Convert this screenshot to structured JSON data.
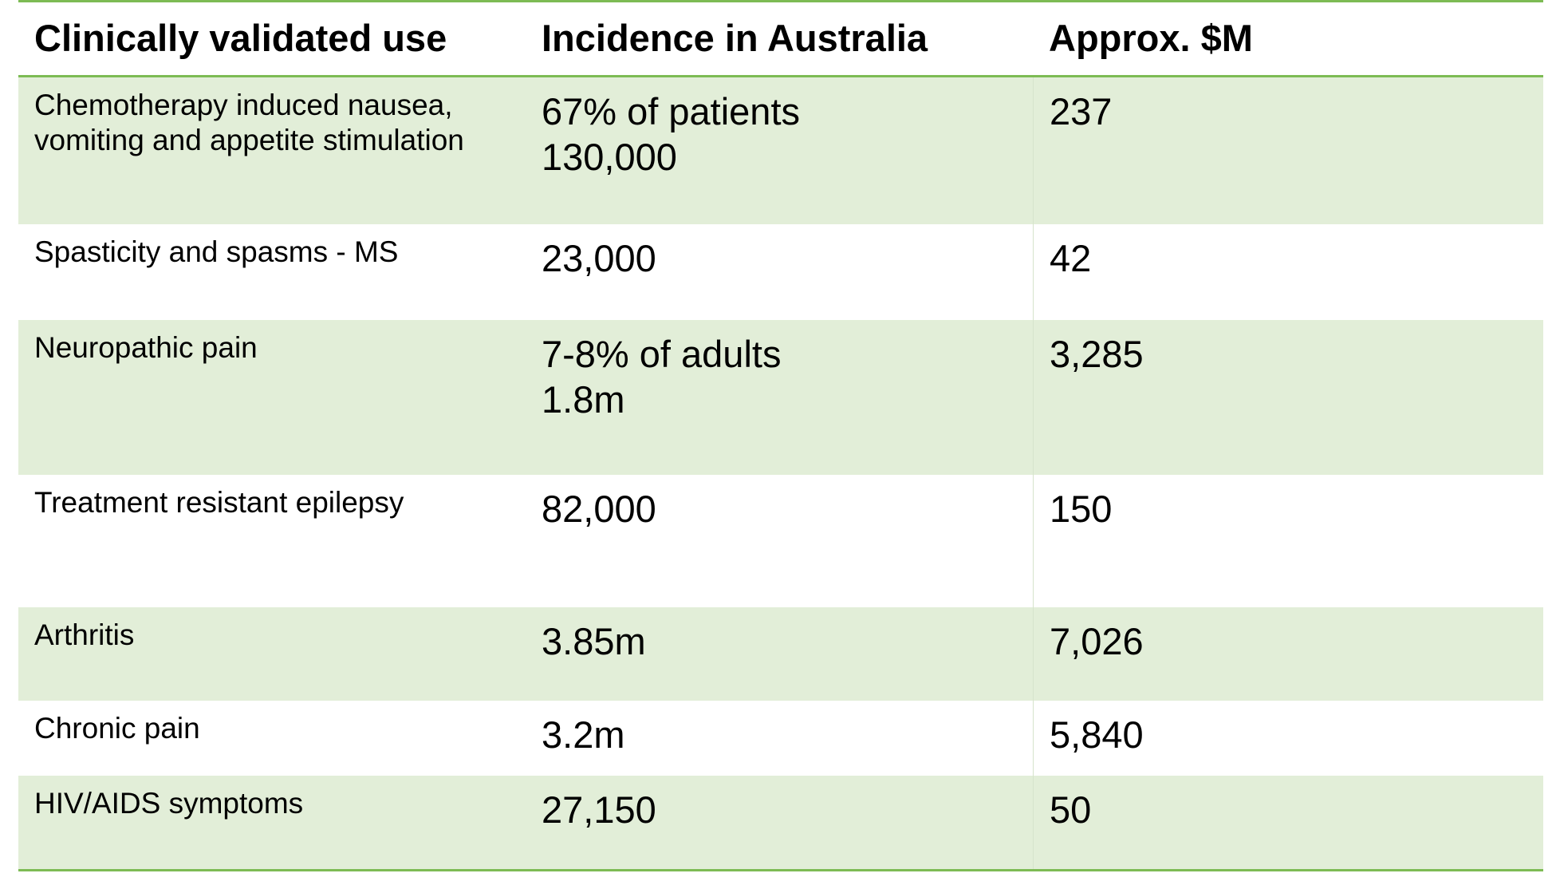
{
  "table": {
    "headers": [
      "Clinically validated use",
      "Incidence in Australia",
      "Approx. $M"
    ],
    "rows": [
      {
        "use": [
          "Chemotherapy induced nausea,",
          "vomiting and appetite stimulation"
        ],
        "incidence": [
          "67% of patients",
          "130,000"
        ],
        "amount": "237"
      },
      {
        "use": [
          "Spasticity and spasms - MS"
        ],
        "incidence": [
          "23,000"
        ],
        "amount": "42"
      },
      {
        "use": [
          "Neuropathic pain"
        ],
        "incidence": [
          "7-8% of adults",
          "1.8m"
        ],
        "amount": "3,285"
      },
      {
        "use": [
          "Treatment resistant epilepsy"
        ],
        "incidence": [
          "82,000"
        ],
        "amount": "150"
      },
      {
        "use": [
          "Arthritis"
        ],
        "incidence": [
          "3.85m"
        ],
        "amount": "7,026"
      },
      {
        "use": [
          "Chronic pain"
        ],
        "incidence": [
          "3.2m"
        ],
        "amount": "5,840"
      },
      {
        "use": [
          "HIV/AIDS symptoms"
        ],
        "incidence": [
          "27,150"
        ],
        "amount": "50"
      }
    ],
    "colors": {
      "rule": "#7dbb54",
      "shaded_row": "#e2eed8",
      "plain_row": "#ffffff"
    }
  }
}
